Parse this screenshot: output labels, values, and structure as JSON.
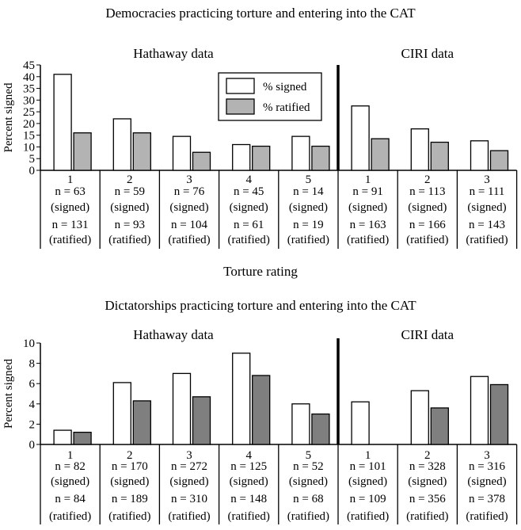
{
  "chart_data": [
    {
      "type": "bar",
      "title": "Democracies practicing torture and entering into the CAT",
      "ylabel": "Percent signed",
      "xlabel": "Torture rating",
      "ylim": [
        0,
        45
      ],
      "yticks": [
        0,
        5,
        10,
        15,
        20,
        25,
        30,
        35,
        40,
        45
      ],
      "legend": {
        "position": "top-right",
        "entries": [
          "% signed",
          "% ratified"
        ]
      },
      "series_names": [
        "% signed",
        "% ratified"
      ],
      "series_colors": [
        "#ffffff",
        "#b3b3b3"
      ],
      "groups": [
        {
          "label": "Hathaway data",
          "categories": [
            {
              "label": "1",
              "signed": 41,
              "ratified": 16,
              "n_signed": "n = 63",
              "n_signed_tag": "(signed)",
              "n_ratified": "n = 131",
              "n_ratified_tag": "(ratified)"
            },
            {
              "label": "2",
              "signed": 22,
              "ratified": 16,
              "n_signed": "n = 59",
              "n_signed_tag": "(signed)",
              "n_ratified": "n = 93",
              "n_ratified_tag": "(ratified)"
            },
            {
              "label": "3",
              "signed": 14.5,
              "ratified": 7.7,
              "n_signed": "n = 76",
              "n_signed_tag": "(signed)",
              "n_ratified": "n = 104",
              "n_ratified_tag": "(ratified)"
            },
            {
              "label": "4",
              "signed": 11,
              "ratified": 10.3,
              "n_signed": "n = 45",
              "n_signed_tag": "(signed)",
              "n_ratified": "n = 61",
              "n_ratified_tag": "(ratified)"
            },
            {
              "label": "5",
              "signed": 14.5,
              "ratified": 10.3,
              "n_signed": "n = 14",
              "n_signed_tag": "(signed)",
              "n_ratified": "n = 19",
              "n_ratified_tag": "(ratified)"
            }
          ]
        },
        {
          "label": "CIRI data",
          "categories": [
            {
              "label": "1",
              "signed": 27.5,
              "ratified": 13.5,
              "n_signed": "n = 91",
              "n_signed_tag": "(signed)",
              "n_ratified": "n = 163",
              "n_ratified_tag": "(ratified)"
            },
            {
              "label": "2",
              "signed": 17.7,
              "ratified": 12,
              "n_signed": "n = 113",
              "n_signed_tag": "(signed)",
              "n_ratified": "n = 166",
              "n_ratified_tag": "(ratified)"
            },
            {
              "label": "3",
              "signed": 12.6,
              "ratified": 8.4,
              "n_signed": "n = 111",
              "n_signed_tag": "(signed)",
              "n_ratified": "n = 143",
              "n_ratified_tag": "(ratified)"
            }
          ]
        }
      ]
    },
    {
      "type": "bar",
      "title": "Dictatorships practicing torture and entering into the CAT",
      "ylabel": "Percent signed",
      "xlabel": "",
      "ylim": [
        0,
        10
      ],
      "yticks": [
        0,
        2,
        4,
        6,
        8,
        10
      ],
      "series_names": [
        "% signed",
        "% ratified"
      ],
      "series_colors": [
        "#ffffff",
        "#7f7f7f"
      ],
      "groups": [
        {
          "label": "Hathaway data",
          "categories": [
            {
              "label": "1",
              "signed": 1.4,
              "ratified": 1.2,
              "n_signed": "n = 82",
              "n_signed_tag": "(signed)",
              "n_ratified": "n = 84",
              "n_ratified_tag": "(ratified)"
            },
            {
              "label": "2",
              "signed": 6.1,
              "ratified": 4.3,
              "n_signed": "n = 170",
              "n_signed_tag": "(signed)",
              "n_ratified": "n = 189",
              "n_ratified_tag": "(ratified)"
            },
            {
              "label": "3",
              "signed": 7,
              "ratified": 4.7,
              "n_signed": "n = 272",
              "n_signed_tag": "(signed)",
              "n_ratified": "n = 310",
              "n_ratified_tag": "(ratified)"
            },
            {
              "label": "4",
              "signed": 9,
              "ratified": 6.8,
              "n_signed": "n = 125",
              "n_signed_tag": "(signed)",
              "n_ratified": "n = 148",
              "n_ratified_tag": "(ratified)"
            },
            {
              "label": "5",
              "signed": 4,
              "ratified": 3,
              "n_signed": "n = 52",
              "n_signed_tag": "(signed)",
              "n_ratified": "n = 68",
              "n_ratified_tag": "(ratified)"
            }
          ]
        },
        {
          "label": "CIRI data",
          "categories": [
            {
              "label": "1",
              "signed": 4.2,
              "ratified": 0,
              "n_signed": "n = 101",
              "n_signed_tag": "(signed)",
              "n_ratified": "n = 109",
              "n_ratified_tag": "(ratified)"
            },
            {
              "label": "2",
              "signed": 5.3,
              "ratified": 3.6,
              "n_signed": "n =  328",
              "n_signed_tag": "(signed)",
              "n_ratified": "n = 356",
              "n_ratified_tag": "(ratified)"
            },
            {
              "label": "3",
              "signed": 6.7,
              "ratified": 5.9,
              "n_signed": "n = 316",
              "n_signed_tag": "(signed)",
              "n_ratified": "n = 378",
              "n_ratified_tag": "(ratified)"
            }
          ]
        }
      ]
    }
  ]
}
